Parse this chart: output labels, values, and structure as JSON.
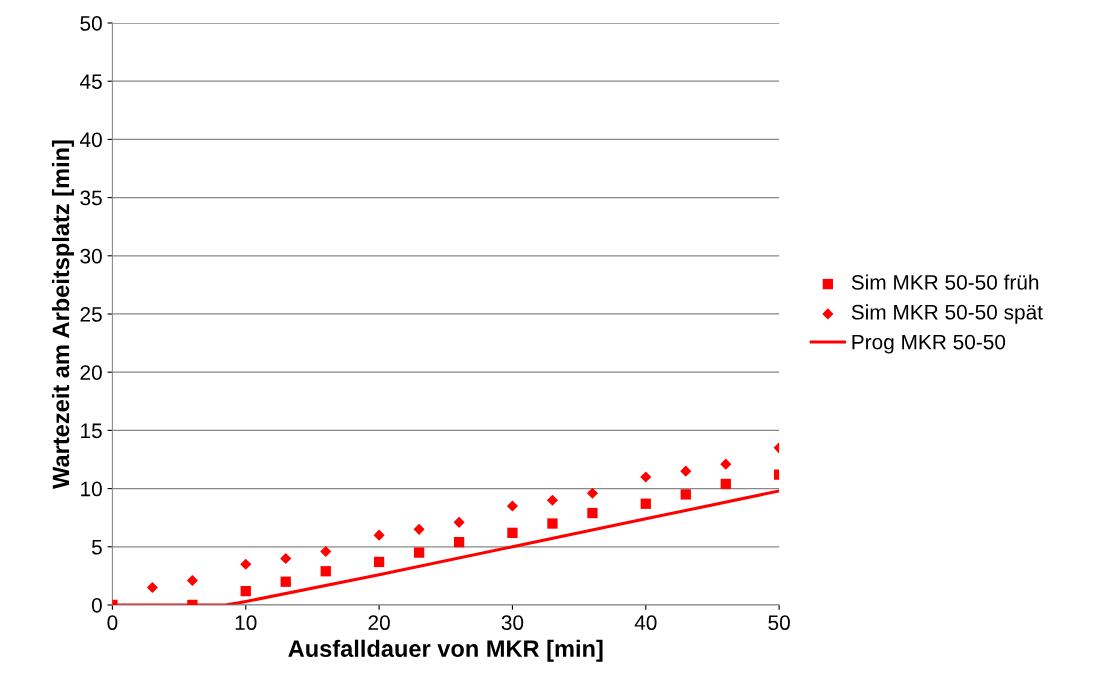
{
  "chart_data": {
    "type": "scatter",
    "xlabel": "Ausfalldauer von MKR [min]",
    "ylabel": "Wartezeit am Arbeitsplatz [min]",
    "xlim": [
      0,
      50
    ],
    "xticks": [
      0,
      10,
      20,
      30,
      40,
      50
    ],
    "ylim": [
      0,
      50
    ],
    "yticks": [
      0,
      5,
      10,
      15,
      20,
      25,
      30,
      35,
      40,
      45,
      50
    ],
    "grid": "y",
    "legend": "right",
    "series": [
      {
        "name": "Sim MKR 50-50 früh",
        "marker": "square",
        "color": "#ff0000",
        "x": [
          0,
          6,
          10,
          13,
          16,
          20,
          23,
          26,
          30,
          33,
          36,
          40,
          43,
          46,
          50
        ],
        "values": [
          0,
          0,
          1.2,
          2.0,
          2.9,
          3.7,
          4.5,
          5.4,
          6.2,
          7.0,
          7.9,
          8.7,
          9.5,
          10.4,
          11.2
        ]
      },
      {
        "name": "Sim MKR 50-50 spät",
        "marker": "diamond",
        "color": "#ff0000",
        "x": [
          3,
          6,
          10,
          13,
          16,
          20,
          23,
          26,
          30,
          33,
          36,
          40,
          43,
          46,
          50
        ],
        "values": [
          1.5,
          2.1,
          3.5,
          4.0,
          4.6,
          6.0,
          6.5,
          7.1,
          8.5,
          9.0,
          9.6,
          11.0,
          11.5,
          12.1,
          13.5
        ]
      },
      {
        "name": "Prog MKR 50-50",
        "type": "line",
        "marker": "none",
        "line_style": "solid",
        "color": "#ff0000",
        "x": [
          0,
          8.5,
          9.5,
          10,
          20,
          30,
          40,
          50
        ],
        "values": [
          0,
          0,
          0.2,
          0.3,
          2.6,
          5.0,
          7.4,
          9.8
        ]
      }
    ]
  }
}
